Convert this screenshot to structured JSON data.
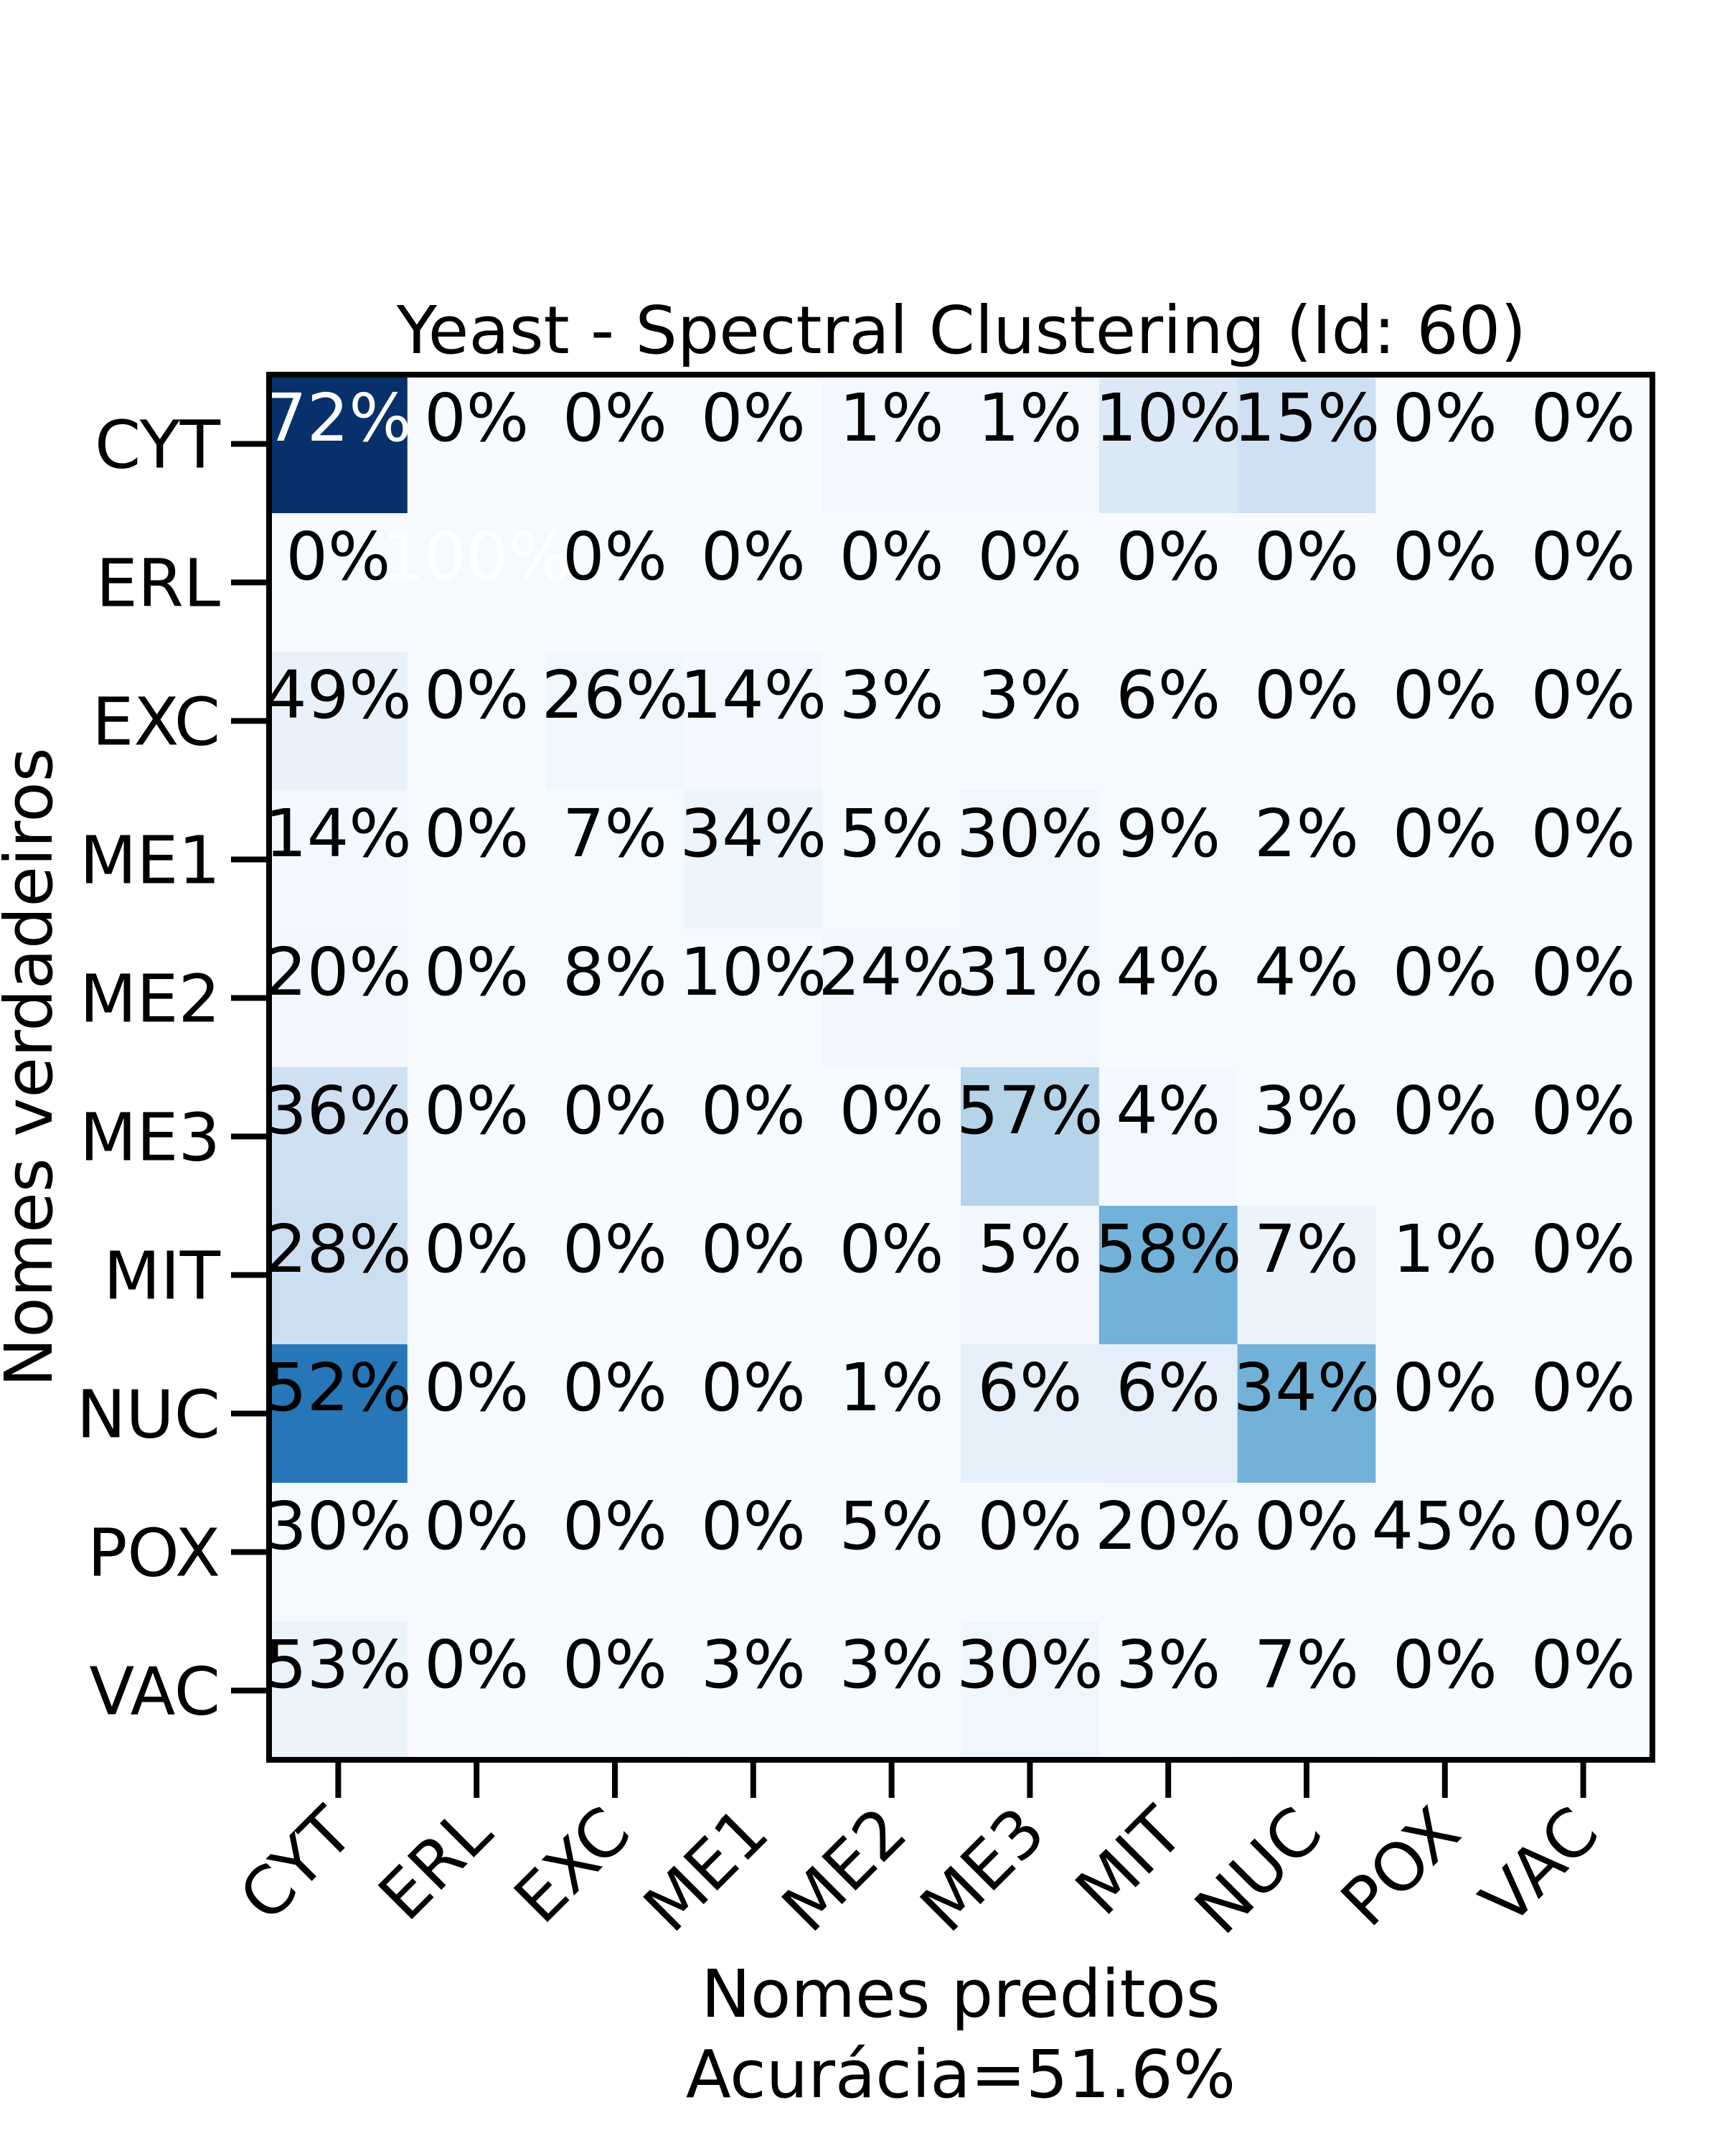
{
  "chart_data": {
    "type": "heatmap",
    "title": "Yeast - Spectral Clustering (Id: 60)",
    "xlabel": "Nomes preditos",
    "accuracy_label": "Acurácia=51.6%",
    "ylabel": "Nomes verdadeiros",
    "x_categories": [
      "CYT",
      "ERL",
      "EXC",
      "ME1",
      "ME2",
      "ME3",
      "MIT",
      "NUC",
      "POX",
      "VAC"
    ],
    "y_categories": [
      "CYT",
      "ERL",
      "EXC",
      "ME1",
      "ME2",
      "ME3",
      "MIT",
      "NUC",
      "POX",
      "VAC"
    ],
    "colormap": "Blues",
    "value_range": [
      0,
      100
    ],
    "values": [
      [
        72,
        0,
        0,
        0,
        1,
        1,
        10,
        15,
        0,
        0
      ],
      [
        0,
        100,
        0,
        0,
        0,
        0,
        0,
        0,
        0,
        0
      ],
      [
        49,
        0,
        26,
        14,
        3,
        3,
        6,
        0,
        0,
        0
      ],
      [
        14,
        0,
        7,
        34,
        5,
        30,
        9,
        2,
        0,
        0
      ],
      [
        20,
        0,
        8,
        10,
        24,
        31,
        4,
        4,
        0,
        0
      ],
      [
        36,
        0,
        0,
        0,
        0,
        57,
        4,
        3,
        0,
        0
      ],
      [
        28,
        0,
        0,
        0,
        0,
        5,
        58,
        7,
        1,
        0
      ],
      [
        52,
        0,
        0,
        0,
        1,
        6,
        6,
        34,
        0,
        0
      ],
      [
        30,
        0,
        0,
        0,
        5,
        0,
        20,
        0,
        45,
        0
      ],
      [
        53,
        0,
        0,
        3,
        3,
        30,
        3,
        7,
        0,
        0
      ]
    ],
    "cell_fill_level": [
      [
        1.0,
        0.0,
        0.0,
        0.0,
        0.02,
        0.02,
        0.14,
        0.21,
        0.0,
        0.0
      ],
      [
        0.0,
        0.01,
        0.0,
        0.0,
        0.0,
        0.0,
        0.0,
        0.0,
        0.0,
        0.0
      ],
      [
        0.07,
        0.0,
        0.04,
        0.02,
        0.0,
        0.0,
        0.01,
        0.0,
        0.0,
        0.0
      ],
      [
        0.02,
        0.0,
        0.01,
        0.05,
        0.01,
        0.04,
        0.01,
        0.0,
        0.0,
        0.0
      ],
      [
        0.03,
        0.0,
        0.01,
        0.01,
        0.03,
        0.04,
        0.01,
        0.01,
        0.0,
        0.0
      ],
      [
        0.21,
        0.0,
        0.0,
        0.0,
        0.0,
        0.3,
        0.02,
        0.01,
        0.0,
        0.0
      ],
      [
        0.22,
        0.0,
        0.0,
        0.0,
        0.0,
        0.03,
        0.48,
        0.06,
        0.01,
        0.0
      ],
      [
        0.73,
        0.0,
        0.0,
        0.0,
        0.01,
        0.09,
        0.09,
        0.48,
        0.0,
        0.0
      ],
      [
        0.01,
        0.0,
        0.0,
        0.0,
        0.0,
        0.0,
        0.01,
        0.0,
        0.01,
        0.0
      ],
      [
        0.06,
        0.0,
        0.0,
        0.0,
        0.0,
        0.04,
        0.0,
        0.01,
        0.0,
        0.0
      ]
    ],
    "grid": false,
    "legend": "none"
  },
  "colors": {
    "background": "#ffffff",
    "axis": "#000000",
    "text_dark": "#000000",
    "text_light": "#ffffff",
    "cmap_low": "#f7fbff",
    "cmap_mid": "#6baed6",
    "cmap_high": "#08306b"
  }
}
